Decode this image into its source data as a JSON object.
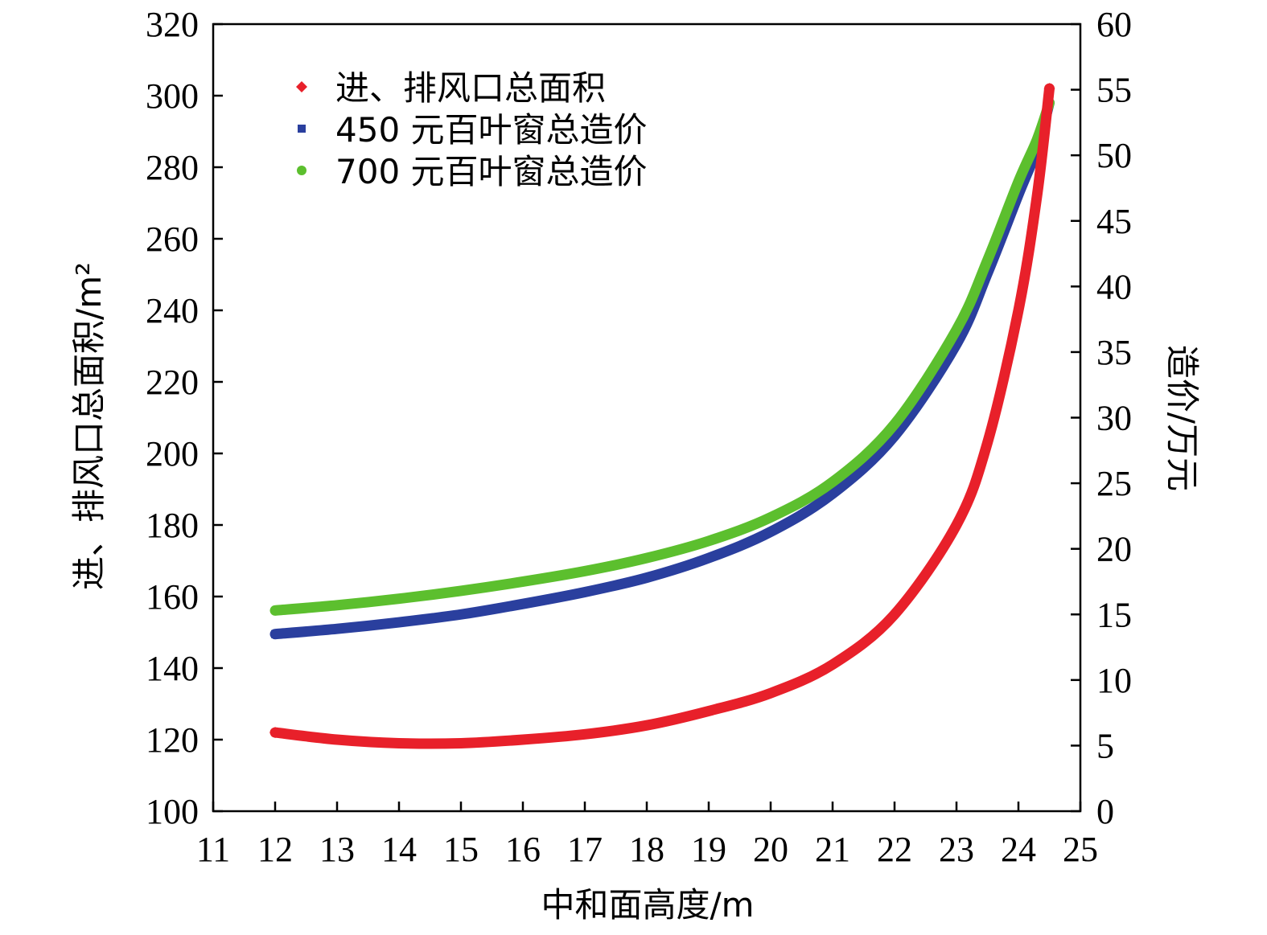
{
  "chart_data": {
    "type": "line",
    "xlabel": "中和面高度/m",
    "ylabel_left": "进、排风口总面积/m²",
    "ylabel_right": "造价/万元",
    "xlim": [
      11,
      25
    ],
    "xticks": [
      11,
      12,
      13,
      14,
      15,
      16,
      17,
      18,
      19,
      20,
      21,
      22,
      23,
      24,
      25
    ],
    "ylim_left": [
      100,
      320
    ],
    "yticks_left": [
      100,
      120,
      140,
      160,
      180,
      200,
      220,
      240,
      260,
      280,
      300,
      320
    ],
    "ylim_right": [
      0,
      60
    ],
    "yticks_right": [
      0,
      5,
      10,
      15,
      20,
      25,
      30,
      35,
      40,
      45,
      50,
      55,
      60
    ],
    "grid": false,
    "legend_position": "top-left",
    "series": [
      {
        "name": "进、排风口总面积",
        "axis": "left",
        "color": "#e8202a",
        "marker": "diamond",
        "x": [
          12,
          13,
          14,
          15,
          16,
          17,
          18,
          19,
          20,
          21,
          22,
          23,
          23.5,
          24,
          24.3,
          24.5
        ],
        "y": [
          122,
          120,
          119,
          119,
          120,
          121.5,
          124,
          128,
          133,
          141,
          155,
          180,
          203,
          240,
          272,
          302
        ]
      },
      {
        "name": "450 元百叶窗总造价",
        "axis": "right",
        "color": "#2a3f9e",
        "marker": "square",
        "x": [
          12,
          13,
          14,
          15,
          16,
          17,
          18,
          19,
          20,
          21,
          22,
          23,
          23.5,
          24,
          24.3,
          24.5
        ],
        "y": [
          13.5,
          13.9,
          14.4,
          15,
          15.8,
          16.7,
          17.8,
          19.3,
          21.3,
          24.2,
          28.6,
          35.6,
          41,
          47,
          50.5,
          54
        ]
      },
      {
        "name": "700 元百叶窗总造价",
        "axis": "right",
        "color": "#5cbf2e",
        "marker": "circle",
        "x": [
          12,
          13,
          14,
          15,
          16,
          17,
          18,
          19,
          20,
          21,
          22,
          23,
          23.5,
          24,
          24.3,
          24.5
        ],
        "y": [
          15.3,
          15.7,
          16.2,
          16.8,
          17.5,
          18.3,
          19.3,
          20.6,
          22.4,
          25.1,
          29.5,
          36.7,
          42,
          48,
          51.2,
          54
        ]
      }
    ]
  }
}
